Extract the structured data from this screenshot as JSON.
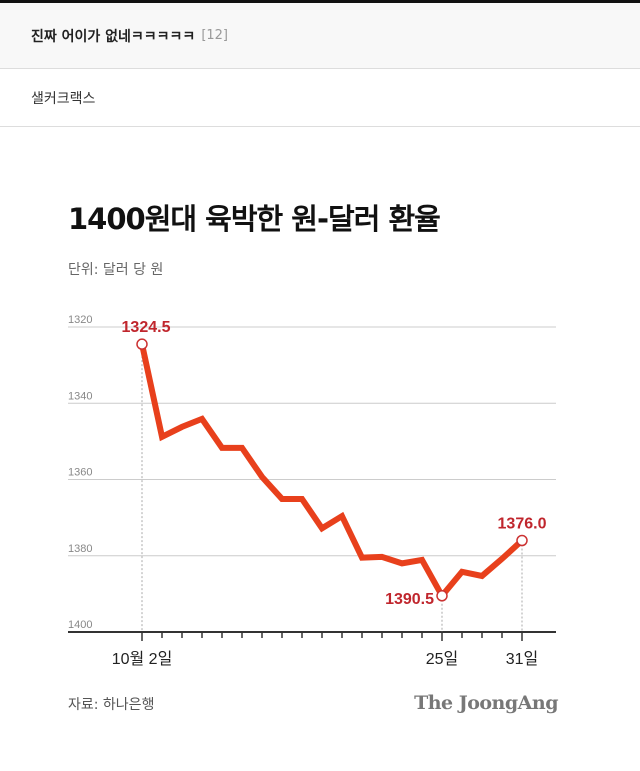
{
  "post": {
    "title": "진짜 어이가 없네ㅋㅋㅋㅋㅋ",
    "comment_count": "[12]",
    "author": "샐커크랙스"
  },
  "chart_data": {
    "type": "line",
    "title": "1400원대 육박한 원-달러 환율",
    "unit_label": "단위: 달러 당 원",
    "source": "자료: 하나은행",
    "logo": "The JoongAng",
    "y_inverted": true,
    "ylim": [
      1320,
      1400
    ],
    "yticks": [
      "1320",
      "1340",
      "1360",
      "1380",
      "1400"
    ],
    "xtick_labels": [
      {
        "index": 0,
        "label": "10월 2일"
      },
      {
        "index": 15,
        "label": "25일"
      },
      {
        "index": 19,
        "label": "31일"
      }
    ],
    "grid": true,
    "series": [
      {
        "name": "원-달러 환율",
        "color": "#e8401c",
        "values": [
          1324.5,
          1348.8,
          1346.2,
          1344.1,
          1351.7,
          1351.7,
          1359.3,
          1365.1,
          1365.1,
          1372.8,
          1369.6,
          1380.5,
          1380.3,
          1382.0,
          1381.1,
          1390.5,
          1384.2,
          1385.3,
          1380.8,
          1376.0
        ]
      }
    ],
    "annotations": [
      {
        "index": 0,
        "label": "1324.5"
      },
      {
        "index": 15,
        "label": "1390.5"
      },
      {
        "index": 19,
        "label": "1376.0"
      }
    ]
  }
}
